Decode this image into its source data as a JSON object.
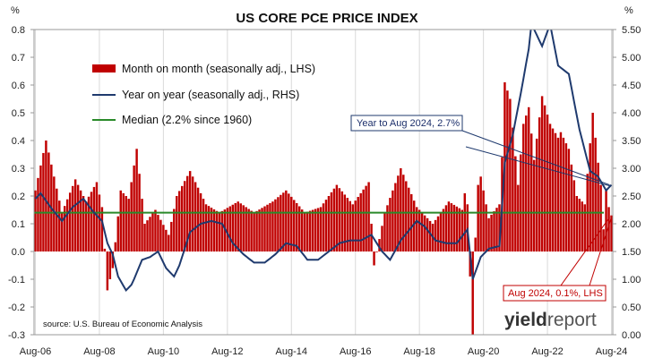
{
  "chart_data": {
    "type": "bar+line",
    "title": "US CORE PCE PRICE INDEX",
    "left_unit": "%",
    "right_unit": "%",
    "left_axis": {
      "min": -0.3,
      "max": 0.8,
      "ticks": [
        "-0.3",
        "-0.2",
        "-0.1",
        "0.0",
        "0.1",
        "0.2",
        "0.3",
        "0.4",
        "0.5",
        "0.6",
        "0.7",
        "0.8"
      ]
    },
    "right_axis": {
      "min": 0.0,
      "max": 5.5,
      "ticks": [
        "0.00",
        "0.50",
        "1.00",
        "1.50",
        "2.00",
        "2.50",
        "3.00",
        "3.50",
        "4.00",
        "4.50",
        "5.00",
        "5.50"
      ]
    },
    "x_ticks": [
      "Aug-06",
      "Aug-08",
      "Aug-10",
      "Aug-12",
      "Aug-14",
      "Aug-16",
      "Aug-18",
      "Aug-20",
      "Aug-22",
      "Aug-24"
    ],
    "x_start": "Aug-06",
    "x_end": "Aug-24",
    "grid": "vertical",
    "legend": [
      {
        "name": "Month on month (seasonally adj., LHS)",
        "color": "#c00000",
        "kind": "bar"
      },
      {
        "name": "Year on year (seasonally adj., RHS)",
        "color": "#1f3a6e",
        "kind": "line"
      },
      {
        "name": "Median (2.2% since 1960)",
        "color": "#2a8a2a",
        "kind": "line"
      }
    ],
    "median_value": 2.2,
    "series": [
      {
        "name": "Month on month (seasonally adj., LHS)",
        "axis": "left",
        "anchors": [
          [
            "Aug-06",
            0.22
          ],
          [
            "Dec-06",
            0.4
          ],
          [
            "Jun-07",
            0.14
          ],
          [
            "Nov-07",
            0.26
          ],
          [
            "Mar-08",
            0.18
          ],
          [
            "Jul-08",
            0.25
          ],
          [
            "Sep-08",
            0.16
          ],
          [
            "Nov-08",
            -0.14
          ],
          [
            "Jan-09",
            -0.06
          ],
          [
            "Apr-09",
            0.22
          ],
          [
            "Jul-09",
            0.19
          ],
          [
            "Oct-09",
            0.37
          ],
          [
            "Jan-10",
            0.1
          ],
          [
            "May-10",
            0.15
          ],
          [
            "Oct-10",
            0.06
          ],
          [
            "Jan-11",
            0.2
          ],
          [
            "Jun-11",
            0.29
          ],
          [
            "Dec-11",
            0.17
          ],
          [
            "May-12",
            0.14
          ],
          [
            "Dec-12",
            0.18
          ],
          [
            "Jun-13",
            0.14
          ],
          [
            "Jan-14",
            0.18
          ],
          [
            "Jun-14",
            0.22
          ],
          [
            "Jan-15",
            0.14
          ],
          [
            "Jul-15",
            0.16
          ],
          [
            "Jan-16",
            0.24
          ],
          [
            "Jul-16",
            0.17
          ],
          [
            "Jan-17",
            0.25
          ],
          [
            "Mar-17",
            -0.05
          ],
          [
            "Jul-17",
            0.14
          ],
          [
            "Jan-18",
            0.3
          ],
          [
            "Jul-18",
            0.16
          ],
          [
            "Jan-19",
            0.1
          ],
          [
            "Jul-19",
            0.18
          ],
          [
            "Dec-19",
            0.15
          ],
          [
            "Jan-20",
            0.21
          ],
          [
            "Feb-20",
            0.17
          ],
          [
            "Mar-20",
            -0.09
          ],
          [
            "Apr-20",
            -0.3
          ],
          [
            "May-20",
            0.05
          ],
          [
            "Jun-20",
            0.24
          ],
          [
            "Jul-20",
            0.27
          ],
          [
            "Oct-20",
            0.12
          ],
          [
            "Feb-21",
            0.17
          ],
          [
            "Mar-21",
            0.34
          ],
          [
            "Apr-21",
            0.61
          ],
          [
            "Jun-21",
            0.55
          ],
          [
            "Sep-21",
            0.24
          ],
          [
            "Nov-21",
            0.46
          ],
          [
            "Jan-22",
            0.52
          ],
          [
            "Mar-22",
            0.33
          ],
          [
            "Jun-22",
            0.56
          ],
          [
            "Sep-22",
            0.46
          ],
          [
            "Dec-22",
            0.41
          ],
          [
            "Jan-23",
            0.43
          ],
          [
            "Apr-23",
            0.37
          ],
          [
            "Jul-23",
            0.2
          ],
          [
            "Oct-23",
            0.17
          ],
          [
            "Jan-24",
            0.5
          ],
          [
            "Mar-24",
            0.32
          ],
          [
            "Apr-24",
            0.24
          ],
          [
            "May-24",
            0.08
          ],
          [
            "Jun-24",
            0.22
          ],
          [
            "Jul-24",
            0.16
          ],
          [
            "Aug-24",
            0.13
          ]
        ]
      },
      {
        "name": "Year on year (seasonally adj., RHS)",
        "axis": "right",
        "anchors": [
          [
            "Aug-06",
            2.45
          ],
          [
            "Oct-06",
            2.55
          ],
          [
            "Feb-07",
            2.28
          ],
          [
            "Jun-07",
            2.05
          ],
          [
            "Oct-07",
            2.3
          ],
          [
            "Feb-08",
            2.45
          ],
          [
            "Jun-08",
            2.2
          ],
          [
            "Sep-08",
            2.05
          ],
          [
            "Nov-08",
            1.65
          ],
          [
            "Jan-09",
            1.45
          ],
          [
            "Mar-09",
            1.05
          ],
          [
            "Jun-09",
            0.8
          ],
          [
            "Aug-09",
            0.9
          ],
          [
            "Sep-09",
            1.0
          ],
          [
            "Dec-09",
            1.35
          ],
          [
            "Mar-10",
            1.4
          ],
          [
            "Jun-10",
            1.5
          ],
          [
            "Sep-10",
            1.2
          ],
          [
            "Dec-10",
            1.05
          ],
          [
            "Feb-11",
            1.25
          ],
          [
            "Jun-11",
            1.85
          ],
          [
            "Oct-11",
            2.0
          ],
          [
            "Feb-12",
            2.05
          ],
          [
            "Jun-12",
            2.0
          ],
          [
            "Oct-12",
            1.65
          ],
          [
            "Feb-13",
            1.45
          ],
          [
            "Jun-13",
            1.3
          ],
          [
            "Oct-13",
            1.3
          ],
          [
            "Feb-14",
            1.45
          ],
          [
            "Jun-14",
            1.65
          ],
          [
            "Oct-14",
            1.6
          ],
          [
            "Feb-15",
            1.35
          ],
          [
            "Jun-15",
            1.35
          ],
          [
            "Oct-15",
            1.5
          ],
          [
            "Feb-16",
            1.65
          ],
          [
            "Jun-16",
            1.7
          ],
          [
            "Oct-16",
            1.7
          ],
          [
            "Feb-17",
            1.8
          ],
          [
            "Jun-17",
            1.5
          ],
          [
            "Sep-17",
            1.35
          ],
          [
            "Jan-18",
            1.7
          ],
          [
            "Jul-18",
            2.05
          ],
          [
            "Oct-18",
            1.95
          ],
          [
            "Feb-19",
            1.7
          ],
          [
            "Jun-19",
            1.65
          ],
          [
            "Oct-19",
            1.65
          ],
          [
            "Feb-20",
            1.9
          ],
          [
            "Apr-20",
            1.0
          ],
          [
            "Jul-20",
            1.4
          ],
          [
            "Oct-20",
            1.55
          ],
          [
            "Feb-21",
            1.6
          ],
          [
            "Apr-21",
            3.1
          ],
          [
            "Jul-21",
            3.6
          ],
          [
            "Oct-21",
            4.35
          ],
          [
            "Jan-22",
            5.15
          ],
          [
            "Feb-22",
            5.6
          ],
          [
            "Jun-22",
            5.2
          ],
          [
            "Sep-22",
            5.6
          ],
          [
            "Dec-22",
            4.85
          ],
          [
            "Apr-23",
            4.7
          ],
          [
            "Aug-23",
            3.7
          ],
          [
            "Dec-23",
            2.95
          ],
          [
            "Mar-24",
            2.85
          ],
          [
            "Jun-24",
            2.6
          ],
          [
            "Jul-24",
            2.65
          ],
          [
            "Aug-24",
            2.7
          ]
        ]
      }
    ],
    "annotations": [
      {
        "text": "Year to Aug 2024, 2.7%",
        "color": "#1c2f6b"
      },
      {
        "text": "Aug 2024, 0.1%, LHS",
        "color": "#c00000"
      }
    ],
    "source": "source: U.S. Bureau of Economic Analysis",
    "brand": {
      "part1": "yield",
      "part2": "report"
    }
  }
}
